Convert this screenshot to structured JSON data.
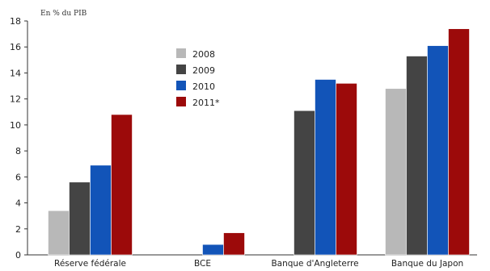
{
  "chart_data": {
    "type": "bar",
    "ylabel": "En % du PIB",
    "ylim": [
      0,
      18
    ],
    "yticks": [
      0,
      2,
      4,
      6,
      8,
      10,
      12,
      14,
      16,
      18
    ],
    "grid": false,
    "legend_position": "top-left",
    "categories": [
      "Réserve fédérale",
      "BCE",
      "Banque d'Angleterre",
      "Banque du Japon"
    ],
    "series": [
      {
        "name": "2008",
        "color": "#b8b8b8",
        "values": [
          3.4,
          0,
          0,
          12.8
        ]
      },
      {
        "name": "2009",
        "color": "#444444",
        "values": [
          5.6,
          0,
          11.1,
          15.3
        ]
      },
      {
        "name": "2010",
        "color": "#1254b8",
        "values": [
          6.9,
          0.8,
          13.5,
          16.1
        ]
      },
      {
        "name": "2011*",
        "color": "#9c0a0a",
        "values": [
          10.8,
          1.7,
          13.2,
          17.4
        ]
      }
    ]
  }
}
